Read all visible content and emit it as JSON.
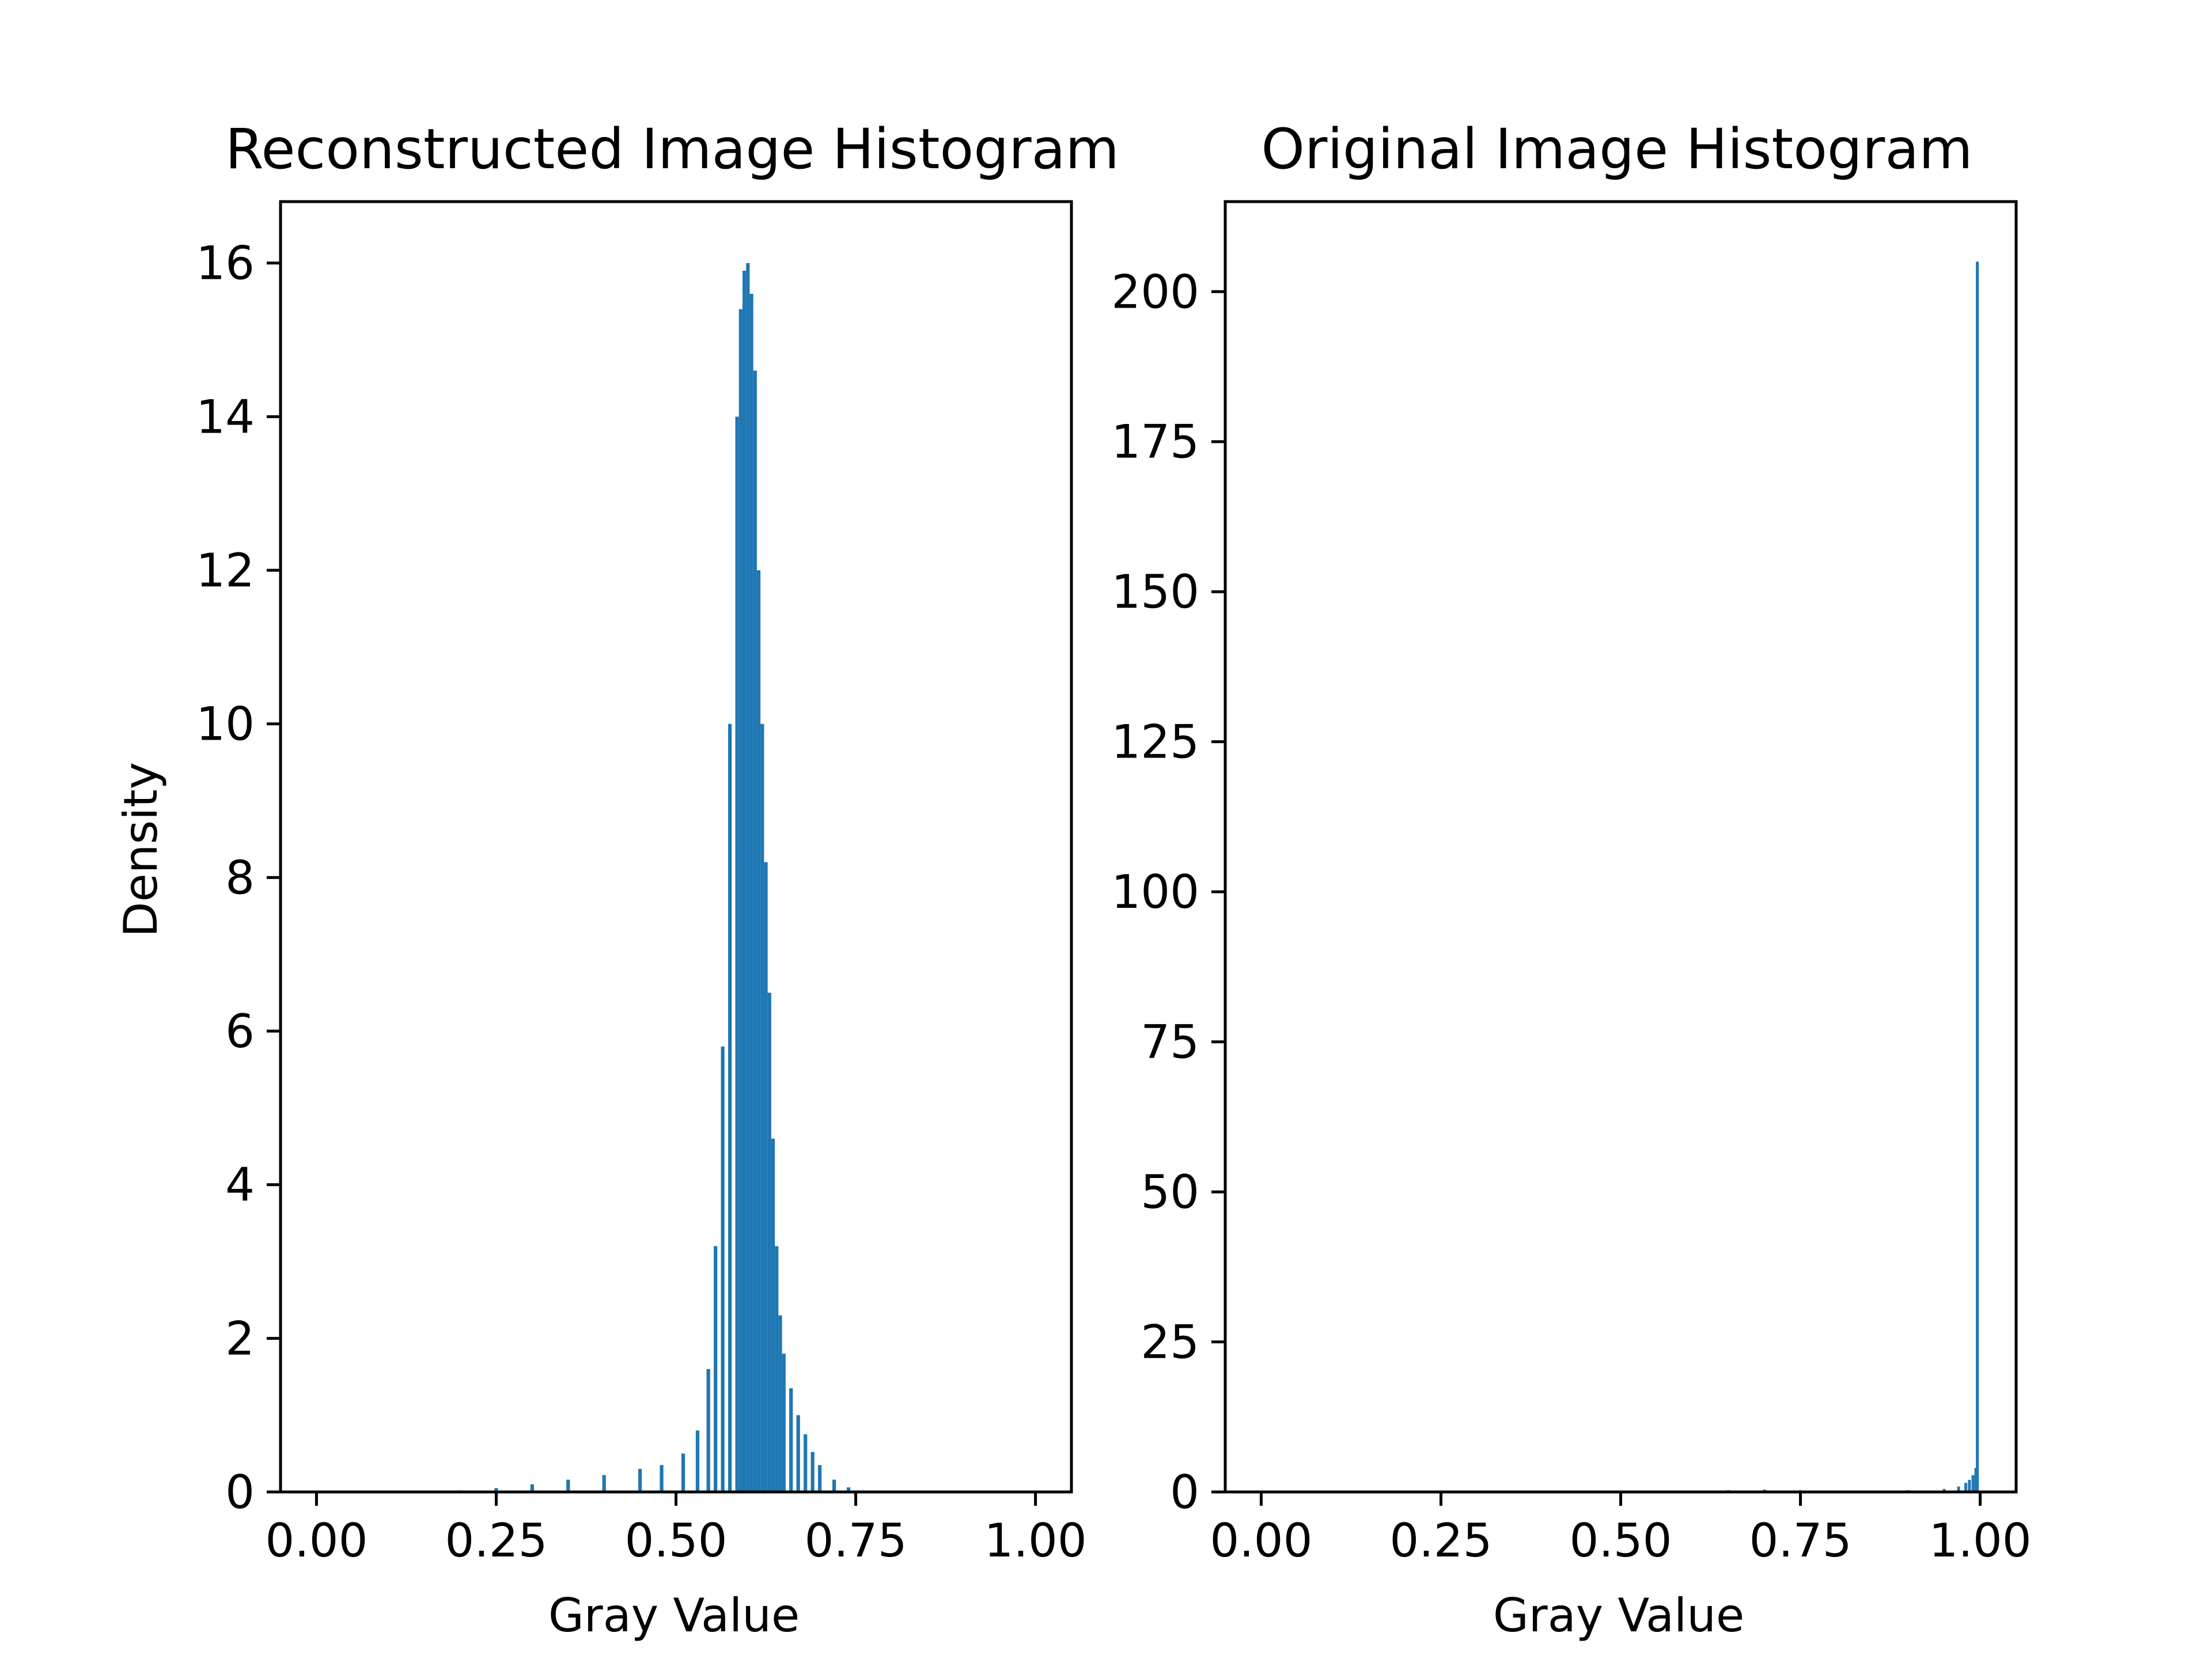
{
  "chart_data": [
    {
      "type": "bar",
      "title": "Reconstructed Image Histogram",
      "xlabel": "Gray Value",
      "ylabel": "Density",
      "xlim": [
        -0.05,
        1.05
      ],
      "ylim": [
        0,
        16.8
      ],
      "xticks": [
        0.0,
        0.25,
        0.5,
        0.75,
        1.0
      ],
      "xtick_labels": [
        "0.00",
        "0.25",
        "0.50",
        "0.75",
        "1.00"
      ],
      "yticks": [
        0,
        2,
        4,
        6,
        8,
        10,
        12,
        14,
        16
      ],
      "ytick_labels": [
        "0",
        "2",
        "4",
        "6",
        "8",
        "10",
        "12",
        "14",
        "16"
      ],
      "grid": false,
      "color": "#1f77b4",
      "bin_width": 0.005,
      "series": [
        {
          "x": [
            0.2,
            0.25,
            0.3,
            0.35,
            0.4,
            0.45,
            0.48,
            0.51,
            0.53,
            0.545,
            0.555,
            0.565,
            0.575,
            0.585,
            0.59,
            0.595,
            0.6,
            0.605,
            0.61,
            0.615,
            0.62,
            0.625,
            0.63,
            0.635,
            0.64,
            0.645,
            0.65,
            0.66,
            0.67,
            0.68,
            0.69,
            0.7,
            0.72,
            0.74,
            0.76,
            0.78,
            0.8
          ],
          "values": [
            0.02,
            0.05,
            0.1,
            0.16,
            0.22,
            0.3,
            0.35,
            0.5,
            0.8,
            1.6,
            3.2,
            5.8,
            10.0,
            14.0,
            15.4,
            15.9,
            16.0,
            15.6,
            14.6,
            12.0,
            10.0,
            8.2,
            6.5,
            4.6,
            3.2,
            2.3,
            1.8,
            1.35,
            1.0,
            0.75,
            0.52,
            0.35,
            0.16,
            0.06,
            0.02,
            0.01,
            0.0
          ]
        }
      ]
    },
    {
      "type": "bar",
      "title": "Original Image Histogram",
      "xlabel": "Gray Value",
      "xlim": [
        -0.05,
        1.05
      ],
      "ylim": [
        0,
        215
      ],
      "xticks": [
        0.0,
        0.25,
        0.5,
        0.75,
        1.0
      ],
      "xtick_labels": [
        "0.00",
        "0.25",
        "0.50",
        "0.75",
        "1.00"
      ],
      "yticks": [
        0,
        25,
        50,
        75,
        100,
        125,
        150,
        175,
        200
      ],
      "ytick_labels": [
        "0",
        "25",
        "50",
        "75",
        "100",
        "125",
        "150",
        "175",
        "200"
      ],
      "grid": false,
      "color": "#1f77b4",
      "bin_width": 0.004,
      "series": [
        {
          "x": [
            0.65,
            0.7,
            0.75,
            0.9,
            0.95,
            0.97,
            0.98,
            0.985,
            0.99,
            0.994,
            0.996,
            0.998
          ],
          "values": [
            0.3,
            0.4,
            0.3,
            0.3,
            0.5,
            0.9,
            1.5,
            2.0,
            2.8,
            4.0,
            205.0,
            0.0
          ]
        }
      ]
    }
  ]
}
